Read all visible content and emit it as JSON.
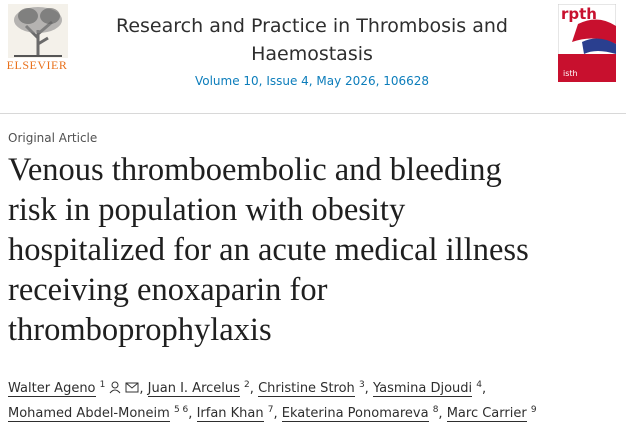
{
  "header": {
    "publisher": "ELSEVIER",
    "journal_lines": [
      "Research and Practice in Thrombosis and",
      "Haemostasis"
    ],
    "issue": "Volume 10, Issue 4, May 2026, 106628",
    "cover_title": "rpth",
    "cover_footer": "isth"
  },
  "article": {
    "kind": "Original Article",
    "title_lines": [
      "Venous thromboembolic and bleeding",
      "risk in population with obesity",
      "hospitalized for an acute medical illness",
      "receiving enoxaparin for",
      "thromboprophylaxis"
    ],
    "separator": ",",
    "author_lines": [
      [
        {
          "name": "Walter Ageno",
          "sup": "1"
        },
        {
          "name": "Juan I. Arcelus",
          "sup": "2"
        },
        {
          "name": "Christine Stroh",
          "sup": "3"
        },
        {
          "name": "Yasmina Djoudi",
          "sup": "4"
        }
      ],
      [
        {
          "name": "Mohamed Abdel-Moneim",
          "sup": "5 6"
        },
        {
          "name": "Irfan Khan",
          "sup": "7"
        },
        {
          "name": "Ekaterina Ponomareva",
          "sup": "8"
        },
        {
          "name": "Marc Carrier",
          "sup": "9"
        }
      ]
    ]
  }
}
